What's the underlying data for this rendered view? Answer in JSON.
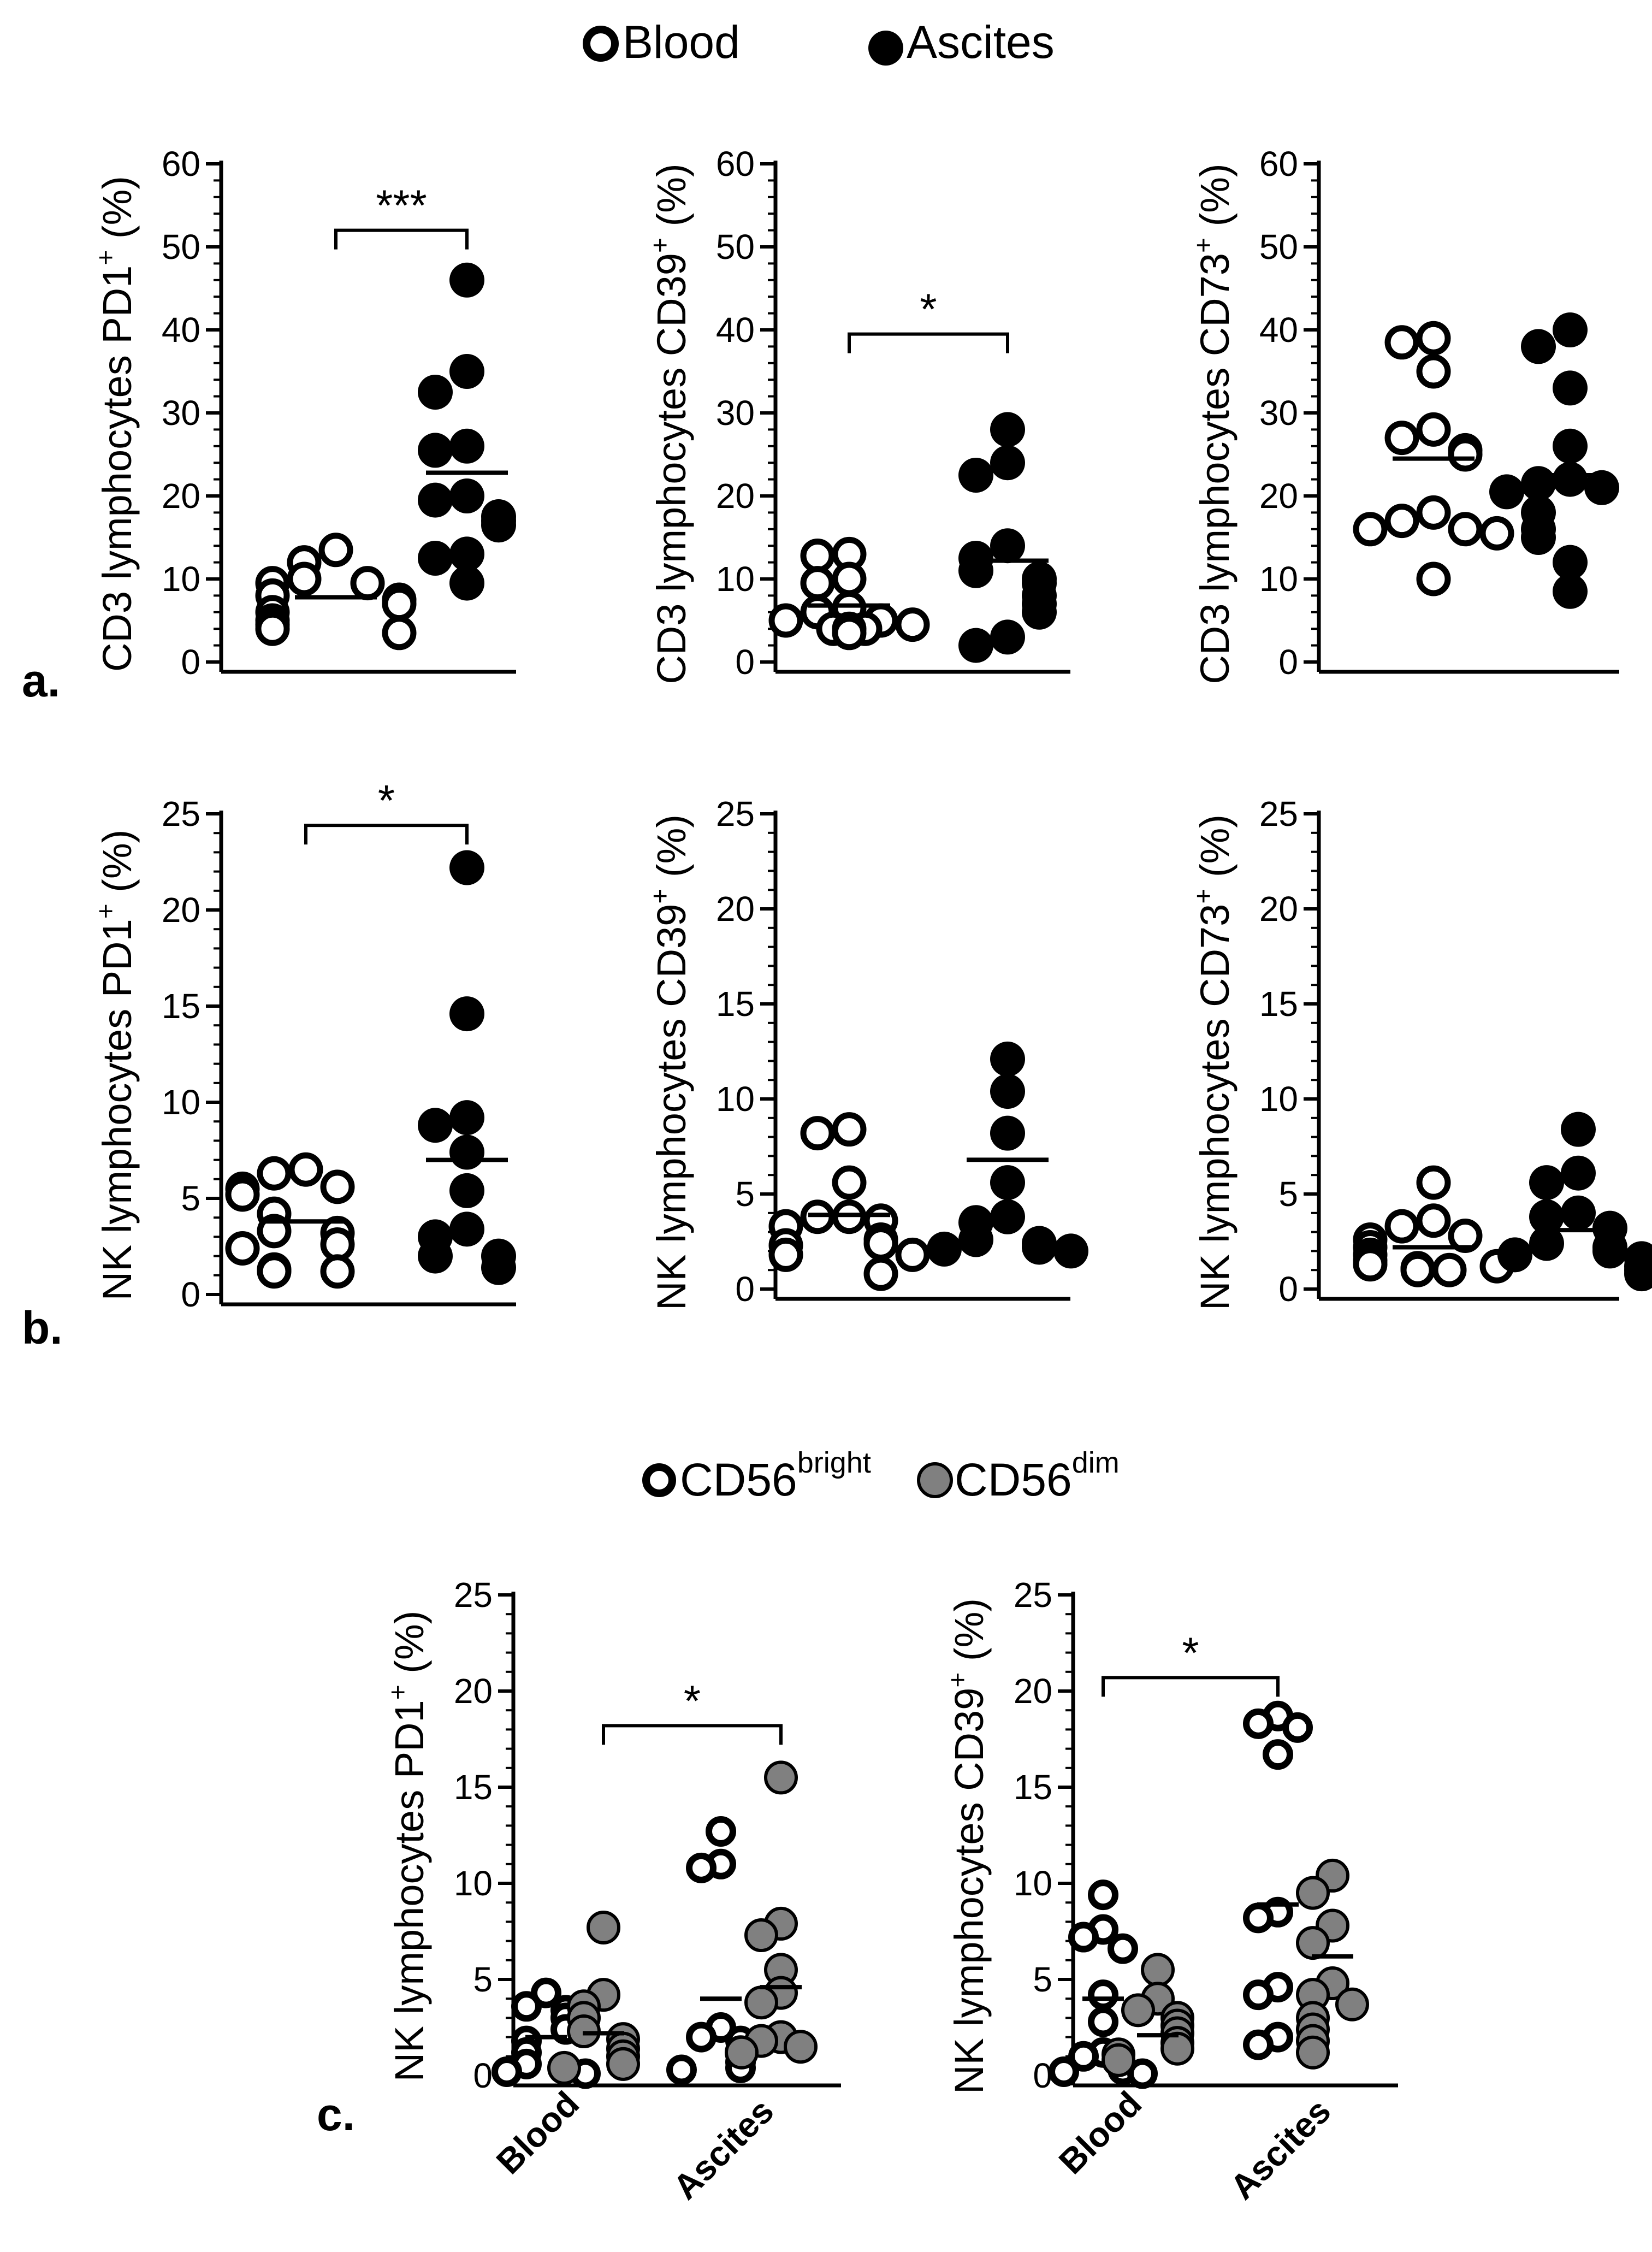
{
  "legend_top": {
    "items": [
      {
        "label": "Blood",
        "marker": "open"
      },
      {
        "label": "Ascites",
        "marker": "filled"
      }
    ]
  },
  "legend_c": {
    "items": [
      {
        "base": "CD56",
        "sup": "bright",
        "marker": "open"
      },
      {
        "base": "CD56",
        "sup": "dim",
        "marker": "gray"
      }
    ]
  },
  "panel_labels": {
    "a": "a.",
    "b": "b.",
    "c": "c."
  },
  "colors": {
    "open_fill": "#ffffff",
    "filled": "#000000",
    "gray": "#808080",
    "stroke": "#000000"
  },
  "chart_data": [
    {
      "id": "a1",
      "type": "scatter",
      "panel": "a",
      "ylabel_main": "CD3 lymphocytes PD1",
      "ylabel_sup": "+",
      "ylabel_end": " (%)",
      "ylim": [
        0,
        60
      ],
      "yticks": [
        "0",
        "10",
        "20",
        "30",
        "40",
        "50",
        "60"
      ],
      "groups": [
        {
          "name": "Blood",
          "marker": "open",
          "mean": 7.8,
          "values": [
            13.5,
            12,
            10,
            9.5,
            9.5,
            8,
            7.5,
            7,
            6,
            5,
            4.5,
            4,
            3.5
          ]
        },
        {
          "name": "Ascites",
          "marker": "filled",
          "mean": 22.8,
          "values": [
            46,
            35,
            32.5,
            26,
            25.5,
            20,
            19.5,
            17.5,
            17,
            16.5,
            13,
            12.5,
            9.5
          ]
        }
      ],
      "significance": {
        "label": "***",
        "from": 0,
        "to": 1,
        "y": 52
      }
    },
    {
      "id": "a2",
      "type": "scatter",
      "panel": "a",
      "ylabel_main": "CD3 lymphocytes CD39",
      "ylabel_sup": "+",
      "ylabel_end": " (%)",
      "ylim": [
        0,
        60
      ],
      "yticks": [
        "0",
        "10",
        "20",
        "30",
        "40",
        "50",
        "60"
      ],
      "groups": [
        {
          "name": "Blood",
          "marker": "open",
          "mean": 6.8,
          "values": [
            13,
            12.8,
            10,
            9.5,
            6.5,
            6,
            5,
            5,
            4.5,
            4,
            4,
            4,
            3.5
          ]
        },
        {
          "name": "Ascites",
          "marker": "filled",
          "mean": 12.2,
          "values": [
            28,
            24,
            22.5,
            14,
            12.5,
            11,
            10,
            9.5,
            8,
            7,
            6,
            3,
            2
          ]
        }
      ],
      "significance": {
        "label": "*",
        "from": 0,
        "to": 1,
        "y": 39.5
      }
    },
    {
      "id": "a3",
      "type": "scatter",
      "panel": "a",
      "ylabel_main": "CD3 lymphocytes CD73",
      "ylabel_sup": "+",
      "ylabel_end": " (%)",
      "ylim": [
        0,
        60
      ],
      "yticks": [
        "0",
        "10",
        "20",
        "30",
        "40",
        "50",
        "60"
      ],
      "groups": [
        {
          "name": "Blood",
          "marker": "open",
          "mean": 24.5,
          "values": [
            39,
            38.5,
            35,
            28,
            27,
            25.5,
            25,
            18,
            17,
            16,
            16,
            15.5,
            10
          ]
        },
        {
          "name": "Ascites",
          "marker": "filled",
          "mean": 22.5,
          "values": [
            40,
            38,
            33,
            26,
            22,
            21.5,
            21,
            20.5,
            18,
            16,
            15,
            12,
            8.5
          ]
        }
      ],
      "significance": null
    },
    {
      "id": "b1",
      "type": "scatter",
      "panel": "b",
      "ylabel_main": "NK lymphocytes PD1",
      "ylabel_sup": "+",
      "ylabel_end": " (%)",
      "ylim": [
        0,
        25
      ],
      "yticks": [
        "0",
        "5",
        "10",
        "15",
        "20",
        "25"
      ],
      "groups": [
        {
          "name": "Blood",
          "marker": "open",
          "mean": 3.8,
          "values": [
            6.5,
            6.3,
            5.6,
            5.5,
            5.2,
            4.2,
            3.3,
            3.2,
            2.6,
            2.4,
            1.3,
            1.2,
            1.2
          ]
        },
        {
          "name": "Ascites",
          "marker": "filled",
          "mean": 7.0,
          "values": [
            22.2,
            14.6,
            9.2,
            8.8,
            7.4,
            5.4,
            3.4,
            3.0,
            2.0,
            2.0,
            1.4
          ]
        }
      ],
      "significance": {
        "label": "*",
        "from": 0,
        "to": 1,
        "y": 24.4
      }
    },
    {
      "id": "b2",
      "type": "scatter",
      "panel": "b",
      "ylabel_main": "NK lymphocytes CD39",
      "ylabel_sup": "+",
      "ylabel_end": " (%)",
      "ylim": [
        0,
        25
      ],
      "yticks": [
        "0",
        "5",
        "10",
        "15",
        "20",
        "25"
      ],
      "groups": [
        {
          "name": "Blood",
          "marker": "open",
          "mean": 3.9,
          "values": [
            8.4,
            8.2,
            5.6,
            3.8,
            3.8,
            3.6,
            3.3,
            2.6,
            2.4,
            2.3,
            1.8,
            1.8,
            0.8
          ]
        },
        {
          "name": "Ascites",
          "marker": "filled",
          "mean": 6.8,
          "values": [
            12.1,
            10.4,
            8.2,
            5.6,
            3.8,
            3.5,
            2.6,
            2.4,
            2.2,
            2.1,
            2.0
          ]
        }
      ],
      "significance": null
    },
    {
      "id": "b3",
      "type": "scatter",
      "panel": "b",
      "ylabel_main": "NK lymphocytes CD73",
      "ylabel_sup": "+",
      "ylabel_end": " (%)",
      "ylim": [
        0,
        25
      ],
      "yticks": [
        "0",
        "5",
        "10",
        "15",
        "20",
        "25"
      ],
      "groups": [
        {
          "name": "Blood",
          "marker": "open",
          "mean": 2.2,
          "values": [
            5.6,
            3.6,
            3.3,
            2.8,
            2.6,
            2.2,
            1.8,
            1.5,
            1.3,
            1.2,
            1.1,
            1.0,
            1.0
          ]
        },
        {
          "name": "Ascites",
          "marker": "filled",
          "mean": 3.1,
          "values": [
            8.4,
            6.1,
            5.6,
            4.0,
            3.8,
            3.2,
            2.4,
            2.2,
            2.0,
            1.8,
            1.6,
            1.2,
            1.0,
            0.8
          ]
        }
      ],
      "significance": null
    },
    {
      "id": "c1",
      "type": "scatter",
      "panel": "c",
      "ylabel_main": "NK lymphocytes PD1",
      "ylabel_sup": "+",
      "ylabel_end": " (%)",
      "ylim": [
        0,
        25
      ],
      "yticks": [
        "0",
        "5",
        "10",
        "15",
        "20",
        "25"
      ],
      "categories": [
        "Blood",
        "Ascites"
      ],
      "groups": [
        {
          "name": "Blood CD56bright",
          "cat": 0,
          "marker": "open",
          "mean": 2.0,
          "values": [
            4.3,
            3.6,
            3.4,
            3.0,
            2.4,
            1.8,
            1.2,
            0.6,
            0.4,
            0.2,
            0.1
          ]
        },
        {
          "name": "Blood CD56dim",
          "cat": 0,
          "marker": "gray",
          "mean": 2.2,
          "values": [
            7.7,
            4.2,
            3.6,
            3.0,
            2.3,
            1.9,
            1.4,
            1.0,
            0.6,
            0.4
          ]
        },
        {
          "name": "Ascites CD56bright",
          "cat": 1,
          "marker": "open",
          "mean": 4.0,
          "values": [
            12.7,
            11.0,
            10.8,
            2.5,
            2.0,
            1.8,
            1.3,
            0.7,
            0.4,
            0.3
          ]
        },
        {
          "name": "Ascites CD56dim",
          "cat": 1,
          "marker": "gray",
          "mean": 4.6,
          "values": [
            15.5,
            7.9,
            7.3,
            5.5,
            4.3,
            3.8,
            2.0,
            1.8,
            1.5,
            1.2
          ]
        }
      ],
      "significance": {
        "label": "*",
        "from_group": 1,
        "to_group": 3,
        "y": 18.2
      }
    },
    {
      "id": "c2",
      "type": "scatter",
      "panel": "c",
      "ylabel_main": "NK lymphocytes CD39",
      "ylabel_sup": "+",
      "ylabel_end": " (%)",
      "ylim": [
        0,
        25
      ],
      "yticks": [
        "0",
        "5",
        "10",
        "15",
        "20",
        "25"
      ],
      "categories": [
        "Blood",
        "Ascites"
      ],
      "groups": [
        {
          "name": "Blood CD56bright",
          "cat": 0,
          "marker": "open",
          "mean": 4.0,
          "values": [
            9.4,
            7.6,
            7.2,
            6.6,
            4.2,
            2.8,
            1.2,
            1.0,
            0.3,
            0.2,
            0.1
          ]
        },
        {
          "name": "Blood CD56dim",
          "cat": 0,
          "marker": "gray",
          "mean": 2.1,
          "values": [
            5.5,
            4.0,
            3.4,
            3.0,
            2.6,
            2.2,
            1.7,
            1.4,
            1.1,
            0.8
          ]
        },
        {
          "name": "Ascites CD56bright",
          "cat": 1,
          "marker": "open",
          "mean": 8.9,
          "values": [
            18.7,
            18.3,
            18.1,
            16.7,
            8.5,
            8.2,
            4.6,
            4.2,
            2.0,
            1.6
          ]
        },
        {
          "name": "Ascites CD56dim",
          "cat": 1,
          "marker": "gray",
          "mean": 6.2,
          "values": [
            10.4,
            9.5,
            7.8,
            6.9,
            4.8,
            4.2,
            3.7,
            3.0,
            2.4,
            1.8,
            1.2
          ]
        }
      ],
      "significance": {
        "label": "*",
        "from_group": 0,
        "to_group": 2,
        "y": 20.7
      }
    }
  ]
}
